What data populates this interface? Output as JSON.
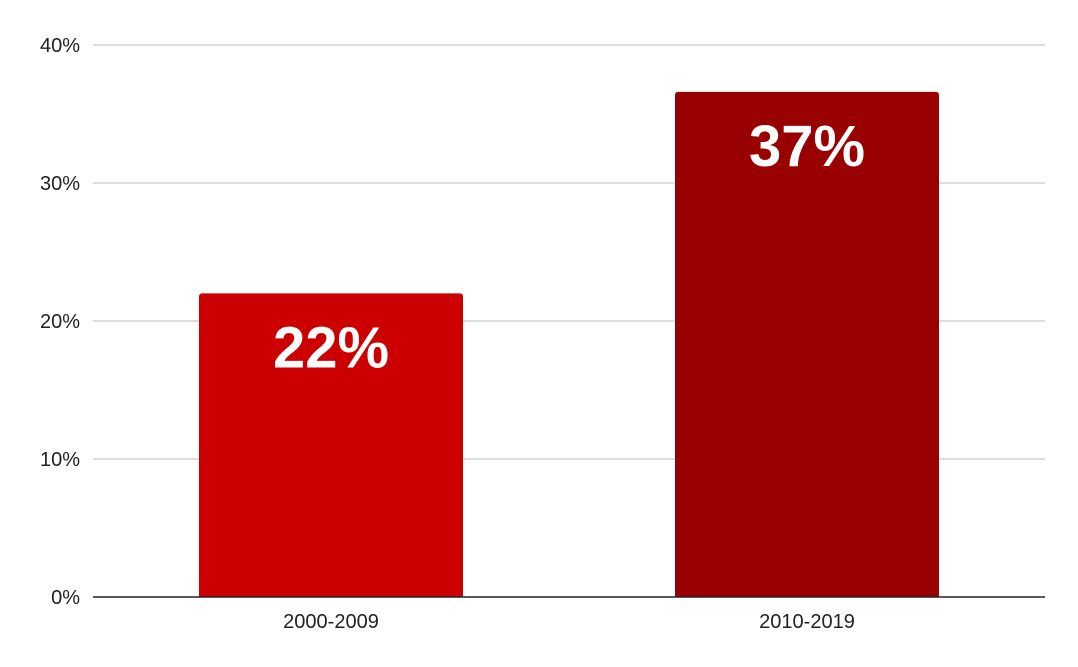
{
  "chart_data": {
    "type": "bar",
    "title": "",
    "xlabel": "",
    "ylabel": "",
    "categories": [
      "2000-2009",
      "2010-2019"
    ],
    "values": [
      22,
      36.6
    ],
    "data_labels": [
      "22%",
      "37%"
    ],
    "ylim": [
      0,
      40
    ],
    "yticks": [
      0,
      10,
      20,
      30,
      40
    ],
    "ytick_labels": [
      "0%",
      "10%",
      "20%",
      "30%",
      "40%"
    ],
    "grid": true,
    "legend": "none",
    "bar_colors": [
      "#cc0000",
      "#990000"
    ],
    "data_label_color": "#ffffff"
  }
}
